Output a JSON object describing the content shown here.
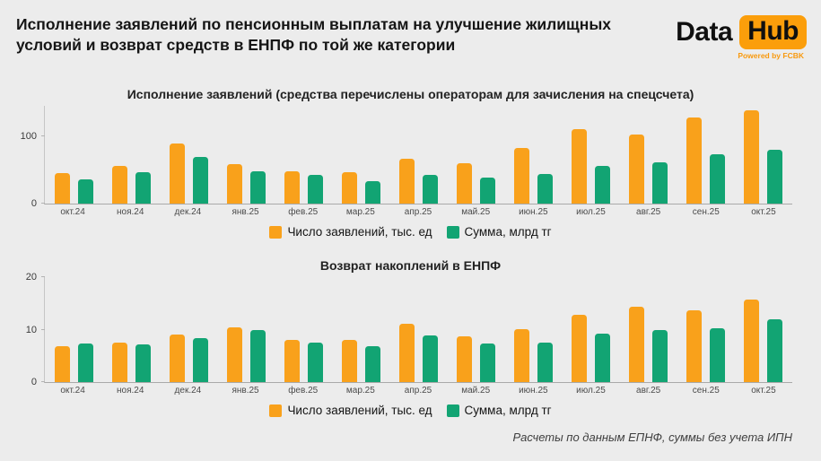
{
  "header": {
    "title_line1": "Исполнение заявлений по пенсионным выплатам на улучшение жилищных",
    "title_line2": "условий и возврат средств в ЕНПФ по той же категории",
    "logo": {
      "part1": "Data",
      "part2": "Hub",
      "tagline": "Powered by FCBK",
      "accent_color": "#FB9E0B"
    }
  },
  "colors": {
    "background": "#ECECEC",
    "bar_orange": "#F9A11B",
    "bar_green": "#12A473"
  },
  "footer": {
    "note": "Расчеты по данным ЕПНФ, суммы без учета ИПН"
  },
  "chart_data": [
    {
      "type": "bar",
      "title": "Исполнение заявлений (средства перечислены операторам для зачисления на спецсчета)",
      "categories": [
        "окт.24",
        "ноя.24",
        "дек.24",
        "янв.25",
        "фев.25",
        "мар.25",
        "апр.25",
        "май.25",
        "июн.25",
        "июл.25",
        "авг.25",
        "сен.25",
        "окт.25"
      ],
      "series": [
        {
          "name": "Число заявлений, тыс. ед",
          "color": "#F9A11B",
          "values": [
            45,
            56,
            89,
            59,
            48,
            46,
            66,
            60,
            82,
            111,
            103,
            128,
            139
          ]
        },
        {
          "name": "Сумма, млрд тг",
          "color": "#12A473",
          "values": [
            36,
            46,
            69,
            48,
            42,
            33,
            42,
            38,
            44,
            56,
            61,
            73,
            80
          ]
        }
      ],
      "xlabel": "",
      "ylabel": "",
      "ylim": [
        0,
        145
      ],
      "yticks": [
        0,
        100
      ],
      "grid": false,
      "legend_position": "bottom"
    },
    {
      "type": "bar",
      "title": "Возврат накоплений в ЕНПФ",
      "categories": [
        "окт.24",
        "ноя.24",
        "дек.24",
        "янв.25",
        "фев.25",
        "мар.25",
        "апр.25",
        "май.25",
        "июн.25",
        "июл.25",
        "авг.25",
        "сен.25",
        "окт.25"
      ],
      "series": [
        {
          "name": "Число заявлений, тыс. ед",
          "color": "#F9A11B",
          "values": [
            6.8,
            7.5,
            9.1,
            10.4,
            8.1,
            8.0,
            11.1,
            8.8,
            10.1,
            12.9,
            14.3,
            13.7,
            15.8
          ]
        },
        {
          "name": "Сумма, млрд тг",
          "color": "#12A473",
          "values": [
            7.4,
            7.2,
            8.4,
            9.9,
            7.6,
            6.9,
            8.9,
            7.4,
            7.6,
            9.3,
            10.0,
            10.3,
            12.0
          ]
        }
      ],
      "xlabel": "",
      "ylabel": "",
      "ylim": [
        0,
        20
      ],
      "yticks": [
        0,
        10,
        20
      ],
      "grid": false,
      "legend_position": "bottom"
    }
  ]
}
